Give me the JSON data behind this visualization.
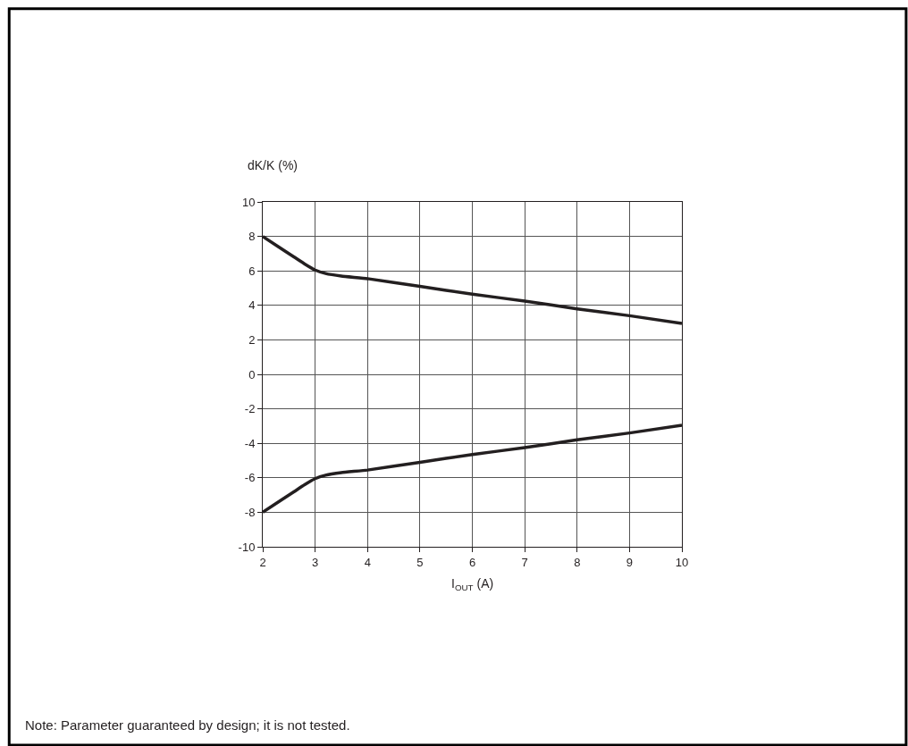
{
  "chart_data": {
    "type": "line",
    "ylabel": "dK/K (%)",
    "xlabel": "I$_{OUT}$ (A)",
    "xlim": [
      2,
      10
    ],
    "xticks": [
      2,
      3,
      4,
      5,
      6,
      7,
      8,
      9,
      10
    ],
    "ylim": [
      -10,
      10
    ],
    "yticks": [
      -10,
      -8,
      -6,
      -4,
      -2,
      0,
      2,
      4,
      6,
      8,
      10
    ],
    "grid": true,
    "marker": "none",
    "line_style": "solid",
    "series": [
      {
        "color": "#231f20",
        "x": [
          2,
          2.3,
          2.6,
          2.8,
          3,
          3.2,
          3.5,
          4,
          5,
          6,
          7,
          8,
          9,
          10
        ],
        "values": [
          8,
          7.4,
          6.8,
          6.4,
          6.05,
          5.85,
          5.7,
          5.55,
          5.1,
          4.65,
          4.25,
          3.8,
          3.4,
          2.95
        ]
      },
      {
        "color": "#231f20",
        "x": [
          2,
          2.3,
          2.6,
          2.8,
          3,
          3.2,
          3.5,
          4,
          5,
          6,
          7,
          8,
          9,
          10
        ],
        "values": [
          -8,
          -7.4,
          -6.8,
          -6.4,
          -6.05,
          -5.85,
          -5.7,
          -5.55,
          -5.1,
          -4.65,
          -4.25,
          -3.8,
          -3.4,
          -2.95
        ]
      }
    ],
    "annotations": [
      "Note: Parameter guaranteed by design; it is not tested."
    ]
  }
}
